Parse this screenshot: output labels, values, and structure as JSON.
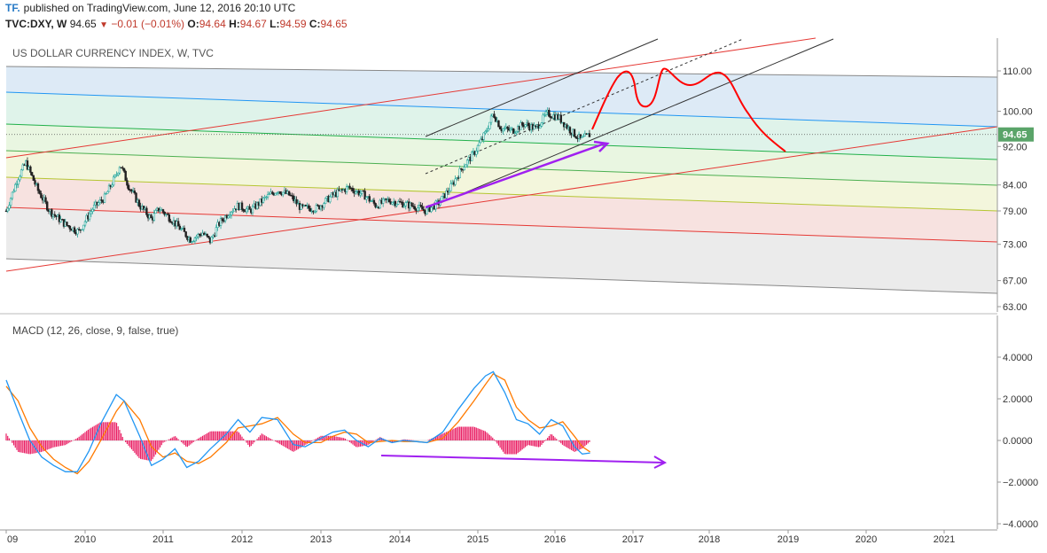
{
  "header": {
    "logo": "TF.",
    "published": "published on TradingView.com, June 12, 2016 20:10 UTC",
    "symbol": "TVC:DXY, W",
    "last": "94.65",
    "change": "−0.01 (−0.01%)",
    "o_label": "O:",
    "o_value": "94.64",
    "h_label": "H:",
    "h_value": "94.67",
    "l_label": "L:",
    "l_value": "94.59",
    "c_label": "C:",
    "c_value": "94.65"
  },
  "colors": {
    "up": "#26a69a",
    "down": "#222222",
    "macd": "#2196f3",
    "signal": "#ff7a00",
    "hist": "#e91e63",
    "trend_red": "#e53935",
    "channel": "#333333",
    "projection": "#ff0000",
    "divergence": "#a020f0",
    "price_badge": "#5aa469"
  },
  "chart_data": [
    {
      "type": "candlestick",
      "title": "US DOLLAR CURRENCY INDEX, W, TVC",
      "x_ticks": [
        "09",
        "2010",
        "2011",
        "2012",
        "2013",
        "2014",
        "2015",
        "2016",
        "2017",
        "2018",
        "2019",
        "2020",
        "2021"
      ],
      "y_ticks": [
        "110.00",
        "100.00",
        "92.00",
        "84.00",
        "79.00",
        "73.00",
        "67.00",
        "63.00"
      ],
      "y_scale": "log",
      "ylim": [
        62,
        121
      ],
      "last_price": "94.65",
      "price_path": [
        [
          2009.0,
          79.0
        ],
        [
          2009.15,
          85.5
        ],
        [
          2009.25,
          88.5
        ],
        [
          2009.4,
          83.0
        ],
        [
          2009.55,
          79.0
        ],
        [
          2009.75,
          76.5
        ],
        [
          2009.92,
          75.2
        ],
        [
          2010.1,
          79.5
        ],
        [
          2010.25,
          81.5
        ],
        [
          2010.4,
          86.0
        ],
        [
          2010.45,
          88.3
        ],
        [
          2010.55,
          84.0
        ],
        [
          2010.7,
          80.0
        ],
        [
          2010.85,
          77.5
        ],
        [
          2010.95,
          79.5
        ],
        [
          2011.1,
          77.5
        ],
        [
          2011.3,
          74.5
        ],
        [
          2011.35,
          73.8
        ],
        [
          2011.5,
          75.0
        ],
        [
          2011.6,
          73.5
        ],
        [
          2011.7,
          76.5
        ],
        [
          2011.85,
          79.0
        ],
        [
          2011.95,
          80.0
        ],
        [
          2012.1,
          79.0
        ],
        [
          2012.3,
          81.5
        ],
        [
          2012.45,
          83.0
        ],
        [
          2012.6,
          82.0
        ],
        [
          2012.75,
          79.5
        ],
        [
          2012.95,
          79.5
        ],
        [
          2013.15,
          82.0
        ],
        [
          2013.35,
          83.5
        ],
        [
          2013.55,
          82.0
        ],
        [
          2013.7,
          80.0
        ],
        [
          2013.85,
          81.0
        ],
        [
          2014.0,
          80.5
        ],
        [
          2014.2,
          79.8
        ],
        [
          2014.33,
          79.0
        ],
        [
          2014.5,
          80.5
        ],
        [
          2014.65,
          83.5
        ],
        [
          2014.8,
          87.5
        ],
        [
          2014.95,
          90.5
        ],
        [
          2015.1,
          95.0
        ],
        [
          2015.2,
          99.5
        ],
        [
          2015.3,
          96.0
        ],
        [
          2015.45,
          95.5
        ],
        [
          2015.6,
          97.0
        ],
        [
          2015.75,
          96.0
        ],
        [
          2015.9,
          99.5
        ],
        [
          2016.05,
          98.5
        ],
        [
          2016.2,
          95.5
        ],
        [
          2016.33,
          93.5
        ],
        [
          2016.45,
          94.65
        ]
      ],
      "annotations": [
        "Fibonacci channel bands (blue, green, yellow, red, grey)",
        "Rising trend line (red) and ascending channel (black, dotted midline)",
        "Hand-drawn projection (red curve) peaking near 110 in 2017-2018 then falling toward 90",
        "Bullish divergence arrow (purple) on price"
      ]
    },
    {
      "type": "line",
      "title": "MACD (12, 26, close, 9, false, true)",
      "y_ticks": [
        "4.0000",
        "2.0000",
        "0.0000",
        "−2.0000",
        "−4.0000"
      ],
      "ylim": [
        -4.2,
        5.3
      ],
      "series": [
        {
          "name": "MACD",
          "points": [
            [
              2009.0,
              2.9
            ],
            [
              2009.15,
              1.4
            ],
            [
              2009.3,
              0.0
            ],
            [
              2009.45,
              -0.8
            ],
            [
              2009.6,
              -1.2
            ],
            [
              2009.75,
              -1.5
            ],
            [
              2009.9,
              -1.5
            ],
            [
              2010.05,
              -0.5
            ],
            [
              2010.2,
              0.8
            ],
            [
              2010.4,
              2.2
            ],
            [
              2010.5,
              1.9
            ],
            [
              2010.7,
              0.2
            ],
            [
              2010.85,
              -1.2
            ],
            [
              2011.0,
              -0.9
            ],
            [
              2011.15,
              -0.4
            ],
            [
              2011.3,
              -1.3
            ],
            [
              2011.45,
              -1.0
            ],
            [
              2011.6,
              -0.4
            ],
            [
              2011.8,
              0.3
            ],
            [
              2011.95,
              1.0
            ],
            [
              2012.1,
              0.4
            ],
            [
              2012.25,
              1.1
            ],
            [
              2012.45,
              1.0
            ],
            [
              2012.65,
              -0.2
            ],
            [
              2012.8,
              -0.3
            ],
            [
              2013.0,
              0.1
            ],
            [
              2013.15,
              0.4
            ],
            [
              2013.3,
              0.5
            ],
            [
              2013.45,
              0.0
            ],
            [
              2013.6,
              -0.3
            ],
            [
              2013.75,
              0.1
            ],
            [
              2013.9,
              -0.1
            ],
            [
              2014.05,
              0.0
            ],
            [
              2014.2,
              -0.05
            ],
            [
              2014.35,
              -0.1
            ],
            [
              2014.55,
              0.4
            ],
            [
              2014.75,
              1.5
            ],
            [
              2014.95,
              2.5
            ],
            [
              2015.1,
              3.1
            ],
            [
              2015.2,
              3.3
            ],
            [
              2015.35,
              2.3
            ],
            [
              2015.5,
              1.0
            ],
            [
              2015.65,
              0.8
            ],
            [
              2015.8,
              0.3
            ],
            [
              2015.95,
              1.0
            ],
            [
              2016.1,
              0.7
            ],
            [
              2016.25,
              -0.3
            ],
            [
              2016.35,
              -0.65
            ],
            [
              2016.45,
              -0.6
            ]
          ]
        },
        {
          "name": "Signal",
          "points": [
            [
              2009.0,
              2.6
            ],
            [
              2009.15,
              1.9
            ],
            [
              2009.3,
              0.6
            ],
            [
              2009.45,
              -0.3
            ],
            [
              2009.6,
              -0.9
            ],
            [
              2009.75,
              -1.3
            ],
            [
              2009.9,
              -1.6
            ],
            [
              2010.05,
              -1.0
            ],
            [
              2010.2,
              0.0
            ],
            [
              2010.4,
              1.4
            ],
            [
              2010.5,
              1.9
            ],
            [
              2010.7,
              1.0
            ],
            [
              2010.85,
              -0.3
            ],
            [
              2011.0,
              -0.8
            ],
            [
              2011.15,
              -0.6
            ],
            [
              2011.3,
              -1.0
            ],
            [
              2011.45,
              -1.1
            ],
            [
              2011.6,
              -0.8
            ],
            [
              2011.8,
              -0.1
            ],
            [
              2011.95,
              0.6
            ],
            [
              2012.1,
              0.7
            ],
            [
              2012.25,
              0.8
            ],
            [
              2012.45,
              1.1
            ],
            [
              2012.65,
              0.3
            ],
            [
              2012.8,
              -0.1
            ],
            [
              2013.0,
              -0.1
            ],
            [
              2013.15,
              0.2
            ],
            [
              2013.3,
              0.4
            ],
            [
              2013.45,
              0.3
            ],
            [
              2013.6,
              -0.1
            ],
            [
              2013.75,
              -0.05
            ],
            [
              2013.9,
              0.0
            ],
            [
              2014.05,
              -0.05
            ],
            [
              2014.2,
              -0.05
            ],
            [
              2014.35,
              -0.1
            ],
            [
              2014.55,
              0.1
            ],
            [
              2014.75,
              0.9
            ],
            [
              2014.95,
              1.9
            ],
            [
              2015.1,
              2.7
            ],
            [
              2015.2,
              3.2
            ],
            [
              2015.35,
              2.9
            ],
            [
              2015.5,
              1.6
            ],
            [
              2015.65,
              1.0
            ],
            [
              2015.8,
              0.6
            ],
            [
              2015.95,
              0.7
            ],
            [
              2016.1,
              0.9
            ],
            [
              2016.25,
              0.2
            ],
            [
              2016.35,
              -0.3
            ],
            [
              2016.45,
              -0.55
            ]
          ]
        }
      ],
      "annotations": [
        "Divergence arrow (purple) on MACD sloping down"
      ]
    }
  ]
}
